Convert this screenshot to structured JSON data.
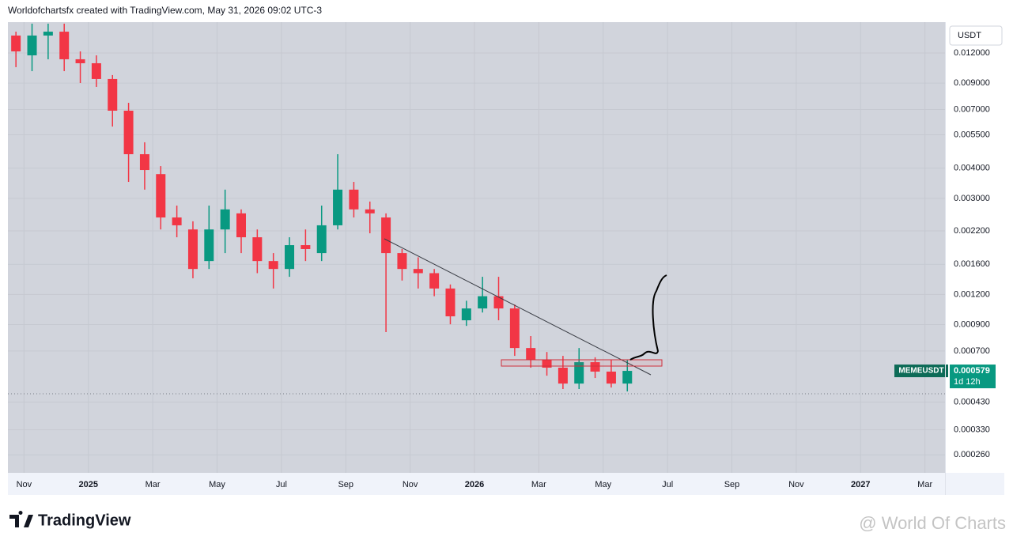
{
  "attribution": "Worldofchartsfx created with TradingView.com, May 31, 2026 09:02 UTC-3",
  "chart_data": {
    "type": "candlestick",
    "currency": "USDT",
    "symbol": "MEMEUSDT",
    "last_price": 0.000579,
    "countdown": "1d 12h",
    "log_scale": true,
    "grid": true,
    "up_color": "#089981",
    "down_color": "#f23645",
    "categories": [
      null,
      "Nov",
      null,
      null,
      null,
      "2025",
      null,
      null,
      null,
      "Mar",
      null,
      null,
      null,
      "May",
      null,
      null,
      null,
      "Jul",
      null,
      null,
      null,
      "Sep",
      null,
      null,
      null,
      "Nov",
      null,
      null,
      null,
      "2026",
      null,
      null,
      null,
      "Mar",
      null,
      null,
      null,
      "May",
      null,
      null,
      null,
      "Jul",
      null,
      null,
      null,
      "Sep",
      null,
      null,
      null,
      "Nov",
      null,
      null,
      null,
      "2027",
      null,
      null,
      null,
      "Mar"
    ],
    "open": [
      0.01417,
      0.01173,
      0.01417,
      0.0147,
      0.0113,
      0.01088,
      0.00936,
      0.00692,
      0.00457,
      0.00378,
      0.0025,
      0.00223,
      0.00165,
      0.00223,
      0.0026,
      0.00207,
      0.00165,
      0.00153,
      0.00192,
      0.00178,
      0.00232,
      0.00326,
      0.0027,
      0.0025,
      0.00178,
      0.00153,
      0.00147,
      0.00127,
      0.000938,
      0.00105,
      0.00118,
      0.00105,
      0.00072,
      0.000643,
      0.000597,
      0.000513,
      0.000629,
      0.000575,
      0.000513,
      null,
      null,
      null,
      null,
      null,
      null,
      null,
      null,
      null,
      null,
      null,
      null,
      null,
      null,
      null,
      null,
      null,
      null,
      null
    ],
    "high": [
      0.0147,
      0.01587,
      0.01587,
      0.01587,
      0.01218,
      0.01173,
      0.00972,
      0.00746,
      0.00512,
      0.00408,
      0.0028,
      0.00241,
      0.0028,
      0.00326,
      0.0027,
      0.00223,
      0.00178,
      0.00207,
      0.00223,
      0.0028,
      0.00457,
      0.00351,
      0.00291,
      0.0026,
      0.00185,
      0.00171,
      0.00153,
      0.00132,
      0.00113,
      0.00142,
      0.00142,
      0.00109,
      0.000807,
      0.000693,
      0.000668,
      0.00072,
      0.000659,
      0.000643,
      0.000643,
      null,
      null,
      null,
      null,
      null,
      null,
      null,
      null,
      null,
      null,
      null,
      null,
      null,
      null,
      null,
      null,
      null,
      null,
      null
    ],
    "low": [
      0.01048,
      0.01009,
      0.0113,
      0.01009,
      0.00901,
      0.00868,
      0.00595,
      0.00351,
      0.00326,
      0.00223,
      0.00207,
      0.0014,
      0.00153,
      0.00178,
      0.00178,
      0.00147,
      0.00127,
      0.00142,
      0.00165,
      0.00165,
      0.00223,
      0.0025,
      0.00215,
      0.000838,
      0.00137,
      0.00127,
      0.00118,
      0.000903,
      0.000889,
      0.00101,
      0.000938,
      0.000668,
      0.000597,
      0.000553,
      0.000487,
      0.000487,
      0.000541,
      0.000494,
      0.000476,
      null,
      null,
      null,
      null,
      null,
      null,
      null,
      null,
      null,
      null,
      null,
      null,
      null,
      null,
      null,
      null,
      null,
      null,
      null
    ],
    "close": [
      0.01218,
      0.01417,
      0.0147,
      0.0113,
      0.01088,
      0.00936,
      0.00692,
      0.00457,
      0.00393,
      0.0025,
      0.00232,
      0.00153,
      0.00223,
      0.0027,
      0.00207,
      0.00165,
      0.00153,
      0.00192,
      0.00185,
      0.00232,
      0.00326,
      0.0027,
      0.0026,
      0.00178,
      0.00153,
      0.00147,
      0.00127,
      0.000974,
      0.00105,
      0.00118,
      0.00105,
      0.00072,
      0.000643,
      0.000597,
      0.000513,
      0.000629,
      0.000575,
      0.000513,
      0.000579,
      null,
      null,
      null,
      null,
      null,
      null,
      null,
      null,
      null,
      null,
      null,
      null,
      null,
      null,
      null,
      null,
      null,
      null,
      null
    ],
    "ylim": [
      0.000219,
      0.0161
    ],
    "yticks": [
      {
        "value": 0.012,
        "label": "0.012000"
      },
      {
        "value": 0.009,
        "label": "0.009000"
      },
      {
        "value": 0.007,
        "label": "0.007000"
      },
      {
        "value": 0.0055,
        "label": "0.005500"
      },
      {
        "value": 0.004,
        "label": "0.004000"
      },
      {
        "value": 0.003,
        "label": "0.003000"
      },
      {
        "value": 0.0022,
        "label": "0.002200"
      },
      {
        "value": 0.0016,
        "label": "0.001600"
      },
      {
        "value": 0.0012,
        "label": "0.001200"
      },
      {
        "value": 0.0009,
        "label": "0.000900"
      },
      {
        "value": 0.0007,
        "label": "0.000700"
      },
      {
        "value": 0.00043,
        "label": "0.000430"
      },
      {
        "value": 0.00033,
        "label": "0.000330"
      },
      {
        "value": 0.00026,
        "label": "0.000260"
      }
    ]
  },
  "footer": {
    "brand": "TradingView",
    "watermark": "@ World Of Charts"
  }
}
